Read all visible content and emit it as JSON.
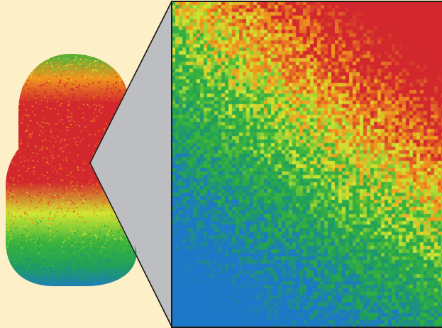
{
  "scene": {
    "background_color": "#FDEFC7",
    "callout_fill": "#BDBEC2",
    "callout_stroke": "#1A1A1A",
    "heatmap_stops": [
      {
        "t": 0.0,
        "color": "#1E78C8"
      },
      {
        "t": 0.25,
        "color": "#1FA05A"
      },
      {
        "t": 0.45,
        "color": "#3CB43C"
      },
      {
        "t": 0.62,
        "color": "#D2E632"
      },
      {
        "t": 0.78,
        "color": "#F0961E"
      },
      {
        "t": 1.0,
        "color": "#D2282D"
      }
    ],
    "specimen": {
      "name": "capsule-specimen",
      "shape": "rounded-capsule"
    },
    "zoom_region": {
      "name": "magnified-detail"
    }
  }
}
